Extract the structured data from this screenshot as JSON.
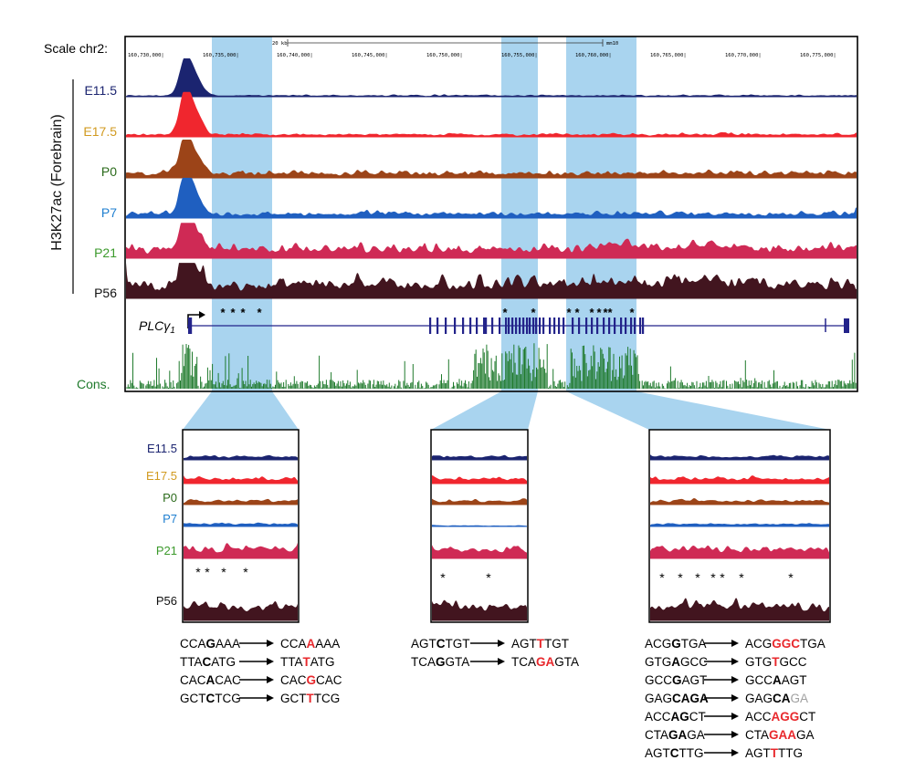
{
  "scale": {
    "label": "Scale chr2:",
    "bar_label": "20 kb",
    "assembly": "mm10",
    "positions": [
      "160,730,000",
      "160,735,000",
      "160,740,000",
      "160,745,000",
      "160,750,000",
      "160,755,000",
      "160,760,000",
      "160,765,000",
      "160,770,000",
      "160,775,000"
    ]
  },
  "mark_label": "H3K27ac (Forebrain)",
  "colors": {
    "E11.5": "#1b2470",
    "E17.5": "#f0262e",
    "P0": "#9c4418",
    "P7": "#1f5fc0",
    "P21": "#cf2a55",
    "P56": "#42151f",
    "cons": "#1f7a2c",
    "gene": "#23238a",
    "highlight": "#a9d4ef",
    "label_E11.5": "#1b2470",
    "label_E17.5": "#d19a1f",
    "label_P0": "#2a6a1a",
    "label_P7": "#1f7fd0",
    "label_P21": "#3c9a2c",
    "label_P56": "#111111"
  },
  "tracks": [
    "E11.5",
    "E17.5",
    "P0",
    "P7",
    "P21",
    "P56"
  ],
  "gene": {
    "name": "PLCγ1",
    "name_base": "PLC",
    "name_sym": "γ",
    "name_sub": "1"
  },
  "cons_label": "Cons.",
  "asterisk": "*",
  "zoom_labels": [
    "E11.5",
    "E17.5",
    "P0",
    "P7",
    "P21",
    "P56"
  ],
  "mutations": [
    [
      {
        "from": [
          [
            "CCA",
            ""
          ],
          [
            "G",
            "b"
          ],
          [
            "AAA",
            ""
          ]
        ],
        "to": [
          [
            "CCA",
            ""
          ],
          [
            "A",
            "red"
          ],
          [
            "AAA",
            ""
          ]
        ]
      },
      {
        "from": [
          [
            "TTA",
            ""
          ],
          [
            "C",
            "b"
          ],
          [
            "ATG",
            ""
          ]
        ],
        "to": [
          [
            "TTA",
            ""
          ],
          [
            "T",
            "red"
          ],
          [
            "ATG",
            ""
          ]
        ]
      },
      {
        "from": [
          [
            "CAC",
            ""
          ],
          [
            "A",
            "b"
          ],
          [
            "CAC",
            ""
          ]
        ],
        "to": [
          [
            "CAC",
            ""
          ],
          [
            "G",
            "red"
          ],
          [
            "CAC",
            ""
          ]
        ]
      },
      {
        "from": [
          [
            "GCT",
            ""
          ],
          [
            "C",
            "b"
          ],
          [
            "TCG",
            ""
          ]
        ],
        "to": [
          [
            "GCT",
            ""
          ],
          [
            "T",
            "red"
          ],
          [
            "TCG",
            ""
          ]
        ]
      }
    ],
    [
      {
        "from": [
          [
            "AGT",
            ""
          ],
          [
            "C",
            "b"
          ],
          [
            "TGT",
            ""
          ]
        ],
        "to": [
          [
            "AGT",
            ""
          ],
          [
            "T",
            "red"
          ],
          [
            "TGT",
            ""
          ]
        ]
      },
      {
        "from": [
          [
            "TCA",
            ""
          ],
          [
            "G",
            "b"
          ],
          [
            "GTA",
            ""
          ]
        ],
        "to": [
          [
            "TCA",
            ""
          ],
          [
            "GA",
            "red"
          ],
          [
            "GTA",
            ""
          ]
        ]
      }
    ],
    [
      {
        "from": [
          [
            "ACG",
            ""
          ],
          [
            "G",
            "b"
          ],
          [
            "TGA",
            ""
          ]
        ],
        "to": [
          [
            "ACG",
            ""
          ],
          [
            "GGC",
            "red"
          ],
          [
            "TGA",
            ""
          ]
        ]
      },
      {
        "from": [
          [
            "GTG",
            ""
          ],
          [
            "A",
            "b"
          ],
          [
            "GCC",
            ""
          ]
        ],
        "to": [
          [
            "GTG",
            ""
          ],
          [
            "T",
            "red"
          ],
          [
            "GCC",
            ""
          ]
        ]
      },
      {
        "from": [
          [
            "GCC",
            ""
          ],
          [
            "G",
            "b"
          ],
          [
            "AGT",
            ""
          ]
        ],
        "to": [
          [
            "GCC",
            ""
          ],
          [
            "A",
            "b"
          ],
          [
            "AGT",
            ""
          ]
        ]
      },
      {
        "from": [
          [
            "GAG",
            ""
          ],
          [
            "CAGA",
            "b"
          ]
        ],
        "to": [
          [
            "GAG",
            ""
          ],
          [
            "CA",
            "b"
          ],
          [
            "GA",
            "gray"
          ]
        ]
      },
      {
        "from": [
          [
            "ACC",
            ""
          ],
          [
            "AG",
            "b"
          ],
          [
            "CT",
            ""
          ]
        ],
        "to": [
          [
            "ACC",
            ""
          ],
          [
            "AGG",
            "red"
          ],
          [
            "CT",
            ""
          ]
        ]
      },
      {
        "from": [
          [
            "CTA",
            ""
          ],
          [
            "GA",
            "b"
          ],
          [
            "GA",
            ""
          ]
        ],
        "to": [
          [
            "CTA",
            ""
          ],
          [
            "GAA",
            "red"
          ],
          [
            "GA",
            ""
          ]
        ]
      },
      {
        "from": [
          [
            "AGT",
            ""
          ],
          [
            "C",
            "b"
          ],
          [
            "TTG",
            ""
          ]
        ],
        "to": [
          [
            "AGT",
            ""
          ],
          [
            "T",
            "red"
          ],
          [
            "TTG",
            ""
          ]
        ]
      }
    ]
  ]
}
